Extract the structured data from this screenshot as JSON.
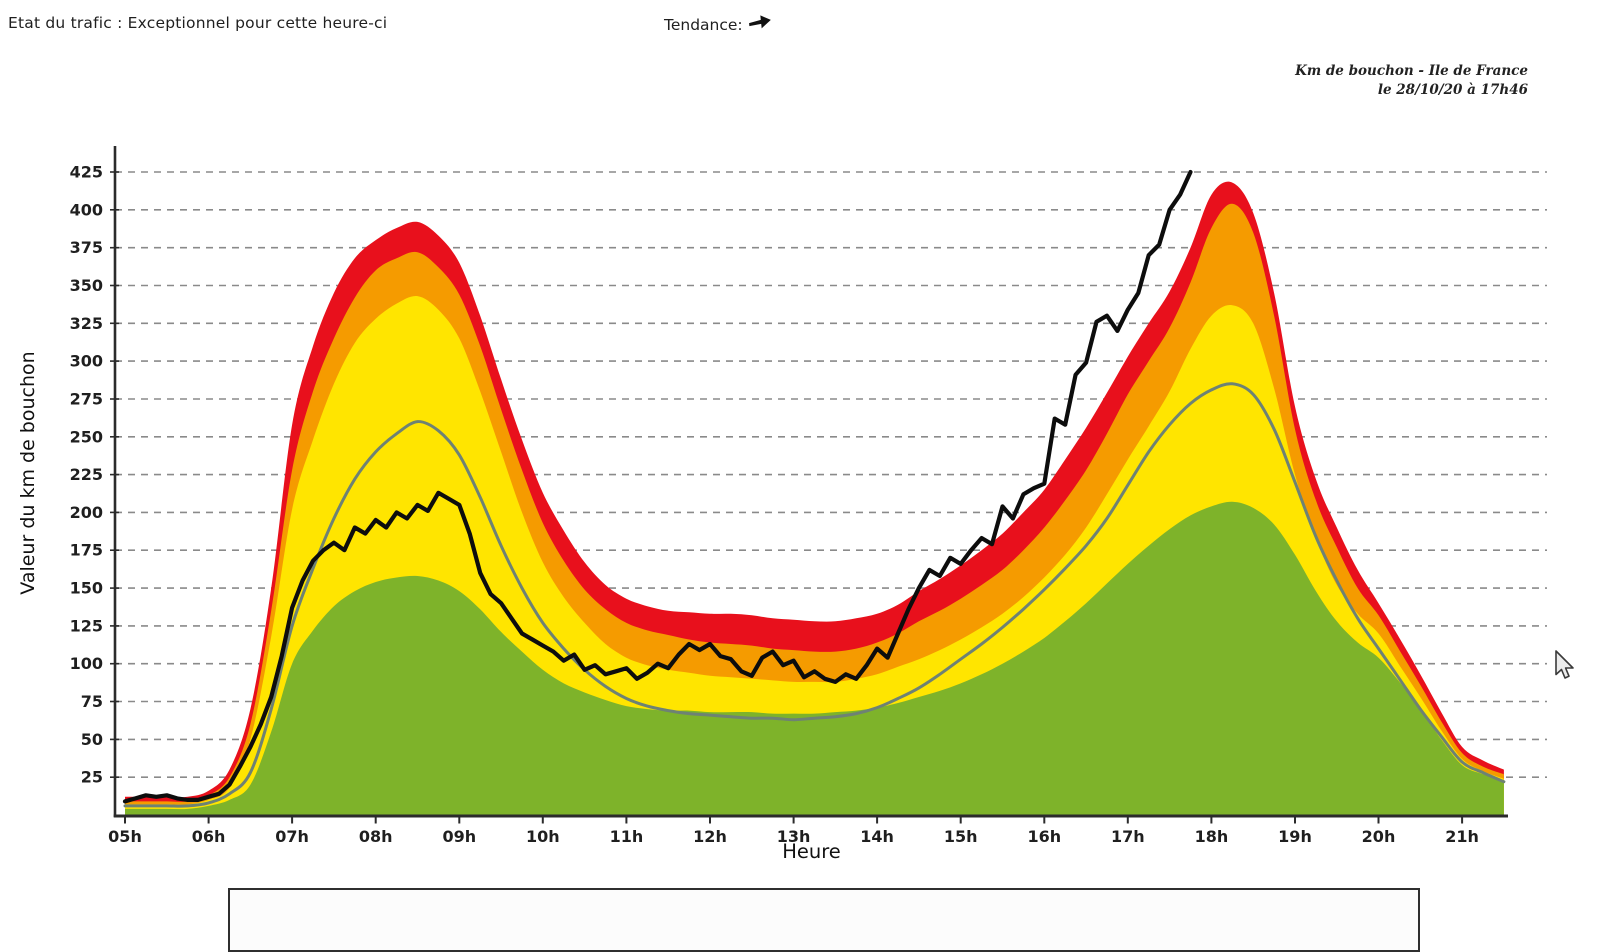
{
  "header": {
    "traffic_state_label": "Etat du trafic : Exceptionnel pour cette heure-ci",
    "trend_label": "Tendance:",
    "trend_direction": "right"
  },
  "annotation": {
    "line1": "Km de bouchon - Ile de France",
    "line2": "le 28/10/20 à 17h46"
  },
  "chart_data": {
    "type": "area",
    "title": "Km de bouchon - Ile de France",
    "xlabel": "Heure",
    "ylabel": "Valeur du  km de bouchon",
    "x_tick_labels": [
      "05h",
      "06h",
      "07h",
      "08h",
      "09h",
      "10h",
      "11h",
      "12h",
      "13h",
      "14h",
      "15h",
      "16h",
      "17h",
      "18h",
      "19h",
      "20h",
      "21h"
    ],
    "y_ticks": [
      25,
      50,
      75,
      100,
      125,
      150,
      175,
      200,
      225,
      250,
      275,
      300,
      325,
      350,
      375,
      400,
      425
    ],
    "xlim": [
      5.0,
      21.75
    ],
    "ylim": [
      0,
      440
    ],
    "grid": "horizontal-dashed",
    "legend_position": "bottom-cut-off",
    "colors": {
      "grid": "#8a8a8a",
      "axis": "#2b2b2b",
      "text": "#1f1f1f"
    },
    "x_start": 5.0,
    "x_step": 0.25,
    "bands": [
      {
        "name": "red-maximum",
        "color": "#e8101c",
        "values": [
          12,
          12,
          12,
          12,
          16,
          30,
          70,
          150,
          258,
          310,
          345,
          368,
          380,
          388,
          392,
          383,
          365,
          330,
          288,
          248,
          213,
          188,
          167,
          152,
          143,
          138,
          135,
          134,
          133,
          133,
          132,
          130,
          129,
          128,
          128,
          130,
          133,
          139,
          148,
          156,
          165,
          175,
          186,
          200,
          215,
          235,
          256,
          279,
          303,
          325,
          346,
          375,
          410,
          418,
          398,
          345,
          270,
          222,
          190,
          162,
          140,
          117,
          93,
          68,
          45,
          36,
          30
        ]
      },
      {
        "name": "orange-high",
        "color": "#f59b00",
        "values": [
          9,
          9,
          9,
          9,
          13,
          25,
          60,
          135,
          228,
          280,
          315,
          342,
          360,
          368,
          372,
          362,
          344,
          310,
          268,
          228,
          193,
          168,
          149,
          136,
          127,
          122,
          119,
          116,
          114,
          113,
          112,
          110,
          109,
          108,
          108,
          110,
          114,
          120,
          128,
          135,
          143,
          152,
          162,
          175,
          190,
          208,
          228,
          252,
          278,
          300,
          322,
          352,
          388,
          404,
          385,
          330,
          255,
          208,
          177,
          150,
          132,
          109,
          86,
          62,
          41,
          32,
          27
        ]
      },
      {
        "name": "yellow-medium",
        "color": "#ffe500",
        "values": [
          7,
          7,
          7,
          7,
          10,
          18,
          50,
          118,
          202,
          248,
          285,
          312,
          328,
          338,
          343,
          334,
          315,
          280,
          240,
          200,
          167,
          144,
          127,
          113,
          104,
          99,
          96,
          94,
          92,
          91,
          90,
          89,
          88,
          88,
          88,
          90,
          93,
          98,
          103,
          109,
          116,
          124,
          133,
          144,
          157,
          172,
          190,
          212,
          235,
          257,
          280,
          308,
          330,
          337,
          325,
          282,
          225,
          183,
          152,
          133,
          120,
          99,
          78,
          56,
          37,
          29,
          24
        ]
      },
      {
        "name": "green-low",
        "color": "#7eb32a",
        "values": [
          4,
          4,
          4,
          4,
          6,
          10,
          20,
          55,
          100,
          122,
          138,
          148,
          154,
          157,
          158,
          155,
          148,
          136,
          121,
          108,
          96,
          87,
          81,
          76,
          72,
          70,
          69,
          69,
          68,
          68,
          68,
          67,
          67,
          67,
          68,
          69,
          71,
          74,
          78,
          82,
          87,
          93,
          100,
          108,
          117,
          128,
          140,
          153,
          166,
          178,
          189,
          198,
          204,
          207,
          203,
          192,
          172,
          148,
          128,
          114,
          104,
          88,
          70,
          50,
          33,
          27,
          23
        ]
      }
    ],
    "lines": [
      {
        "name": "reference-moyenne",
        "color": "#6e8274",
        "width": 3,
        "smooth": true,
        "x_start": 5.0,
        "x_step": 0.25,
        "values": [
          6,
          6,
          6,
          6,
          8,
          14,
          28,
          70,
          125,
          163,
          196,
          222,
          240,
          252,
          260,
          254,
          238,
          210,
          178,
          150,
          127,
          110,
          96,
          85,
          77,
          72,
          69,
          67,
          66,
          65,
          64,
          64,
          63,
          64,
          65,
          67,
          71,
          77,
          84,
          93,
          103,
          113,
          124,
          136,
          149,
          163,
          178,
          196,
          218,
          240,
          258,
          272,
          281,
          285,
          278,
          255,
          220,
          184,
          155,
          130,
          110,
          90,
          70,
          52,
          35,
          28,
          22
        ]
      },
      {
        "name": "trafic-du-jour",
        "color": "#0d0d0d",
        "width": 4.2,
        "smooth": false,
        "x_start": 5.0,
        "x_step": 0.125,
        "values": [
          9,
          11,
          13,
          12,
          13,
          11,
          10,
          10,
          12,
          14,
          20,
          32,
          45,
          60,
          78,
          105,
          137,
          155,
          168,
          175,
          180,
          175,
          190,
          186,
          195,
          190,
          200,
          196,
          205,
          201,
          213,
          209,
          205,
          186,
          160,
          146,
          140,
          130,
          120,
          116,
          112,
          108,
          102,
          106,
          96,
          99,
          93,
          95,
          97,
          90,
          94,
          100,
          97,
          106,
          113,
          109,
          113,
          105,
          103,
          95,
          92,
          104,
          108,
          99,
          102,
          91,
          95,
          90,
          88,
          93,
          90,
          99,
          110,
          104,
          120,
          136,
          150,
          162,
          158,
          170,
          166,
          175,
          183,
          179,
          204,
          196,
          212,
          216,
          219,
          262,
          258,
          291,
          299,
          326,
          330,
          320,
          334,
          345,
          370,
          377,
          400,
          410,
          425
        ]
      }
    ]
  }
}
